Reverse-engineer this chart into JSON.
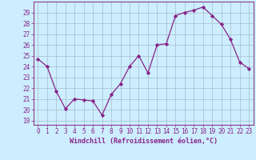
{
  "x": [
    0,
    1,
    2,
    3,
    4,
    5,
    6,
    7,
    8,
    9,
    10,
    11,
    12,
    13,
    14,
    15,
    16,
    17,
    18,
    19,
    20,
    21,
    22,
    23
  ],
  "y": [
    24.7,
    24.0,
    21.7,
    20.1,
    21.0,
    20.9,
    20.8,
    19.5,
    21.4,
    22.4,
    24.0,
    25.0,
    23.4,
    26.0,
    26.1,
    28.7,
    29.0,
    29.2,
    29.5,
    28.7,
    27.9,
    26.5,
    24.4,
    23.8
  ],
  "line_color": "#882288",
  "marker": "D",
  "marker_size": 2.2,
  "bg_color": "#cceeff",
  "grid_color": "#aabbcc",
  "xlabel": "Windchill (Refroidissement éolien,°C)",
  "ylabel_ticks": [
    19,
    20,
    21,
    22,
    23,
    24,
    25,
    26,
    27,
    28,
    29
  ],
  "ylim": [
    18.6,
    30.0
  ],
  "xlim": [
    -0.5,
    23.5
  ],
  "tick_fontsize": 5.5,
  "xlabel_fontsize": 6.0
}
